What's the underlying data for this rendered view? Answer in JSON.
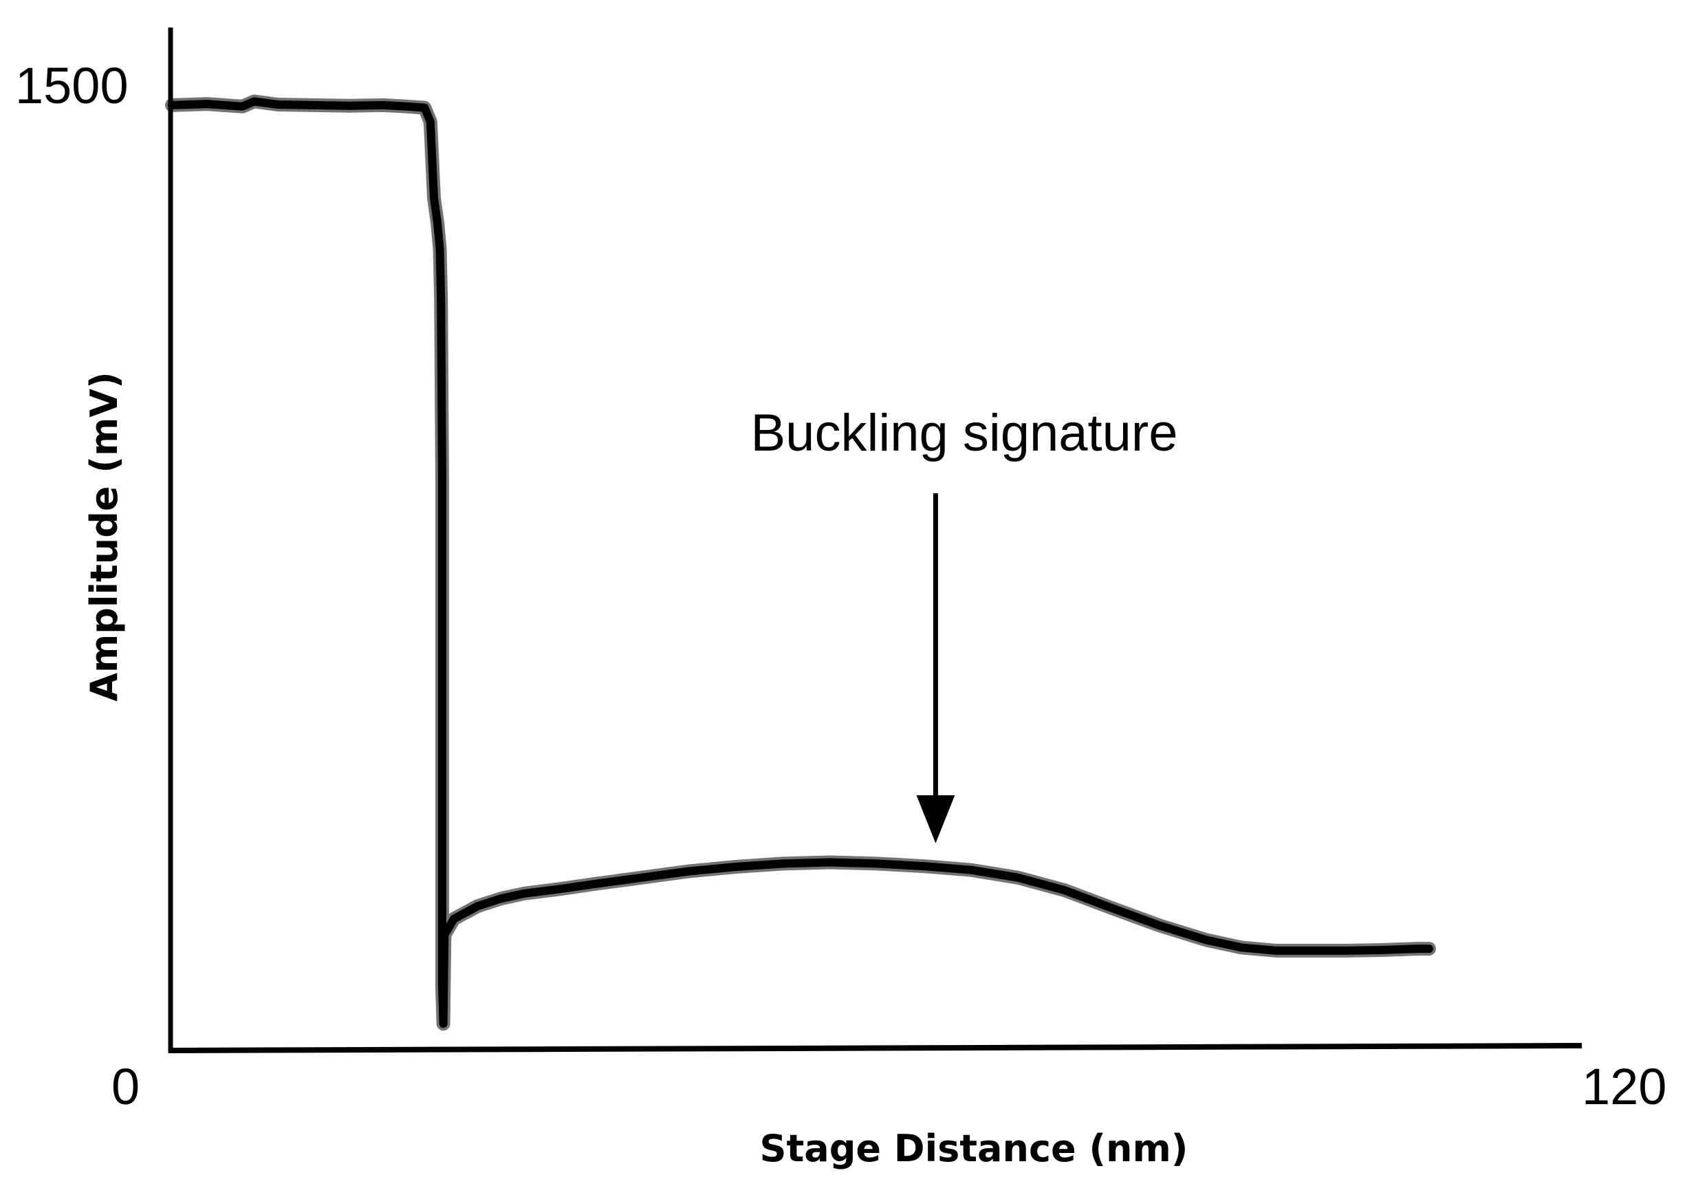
{
  "chart_data": {
    "type": "line",
    "xlabel": "Stage Distance (nm)",
    "ylabel": "Amplitude (mV)",
    "xlim": [
      0,
      120
    ],
    "ylim": [
      0,
      1500
    ],
    "x_ticks": [
      "0",
      "120"
    ],
    "y_ticks": [
      "1500"
    ],
    "grid": false,
    "legend": "none",
    "line_color": "#000000",
    "series": [
      {
        "x": [
          0,
          3,
          6,
          7,
          9,
          12,
          15,
          18,
          20,
          21.5,
          22,
          22.3,
          22.6,
          22.8,
          22.9,
          23,
          23,
          23,
          23.1,
          23.2,
          24,
          26,
          28,
          30,
          33,
          36,
          40,
          44,
          48,
          52,
          56,
          60,
          64,
          68,
          72,
          76,
          80,
          84,
          88,
          91,
          94,
          97,
          100,
          103,
          106,
          107
        ],
        "y": [
          1486,
          1488,
          1484,
          1492,
          1487,
          1486,
          1485,
          1486,
          1484,
          1482,
          1460,
          1340,
          1300,
          1260,
          1180,
          900,
          400,
          100,
          40,
          180,
          205,
          225,
          237,
          245,
          252,
          260,
          270,
          280,
          287,
          292,
          294,
          292,
          288,
          282,
          270,
          250,
          222,
          195,
          172,
          160,
          155,
          155,
          155,
          156,
          158,
          158
        ]
      }
    ],
    "annotations": [
      {
        "text": "Buckling signature",
        "arrow_x": 65,
        "arrow_from_y": 875,
        "arrow_to_y": 362
      }
    ]
  }
}
